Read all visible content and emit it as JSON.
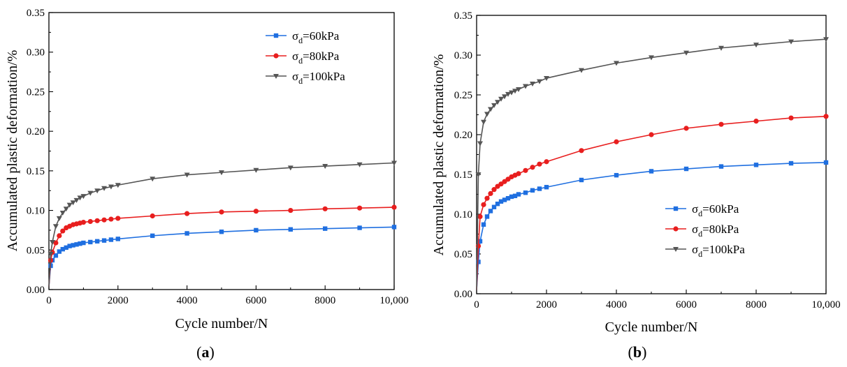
{
  "chart_data": [
    {
      "type": "line",
      "panel_label": "a",
      "xlabel": "Cycle number/N",
      "ylabel": "Accumulated plastic deformation/%",
      "xlim": [
        0,
        10000
      ],
      "ylim": [
        0,
        0.35
      ],
      "x_ticks": [
        "0",
        "2000",
        "4000",
        "6000",
        "8000",
        "10,000"
      ],
      "y_ticks": [
        "0.00",
        "0.05",
        "0.10",
        "0.15",
        "0.20",
        "0.25",
        "0.30",
        "0.35"
      ],
      "legend_position": "top-right",
      "grid": false,
      "x": [
        1,
        50,
        100,
        200,
        300,
        400,
        500,
        600,
        700,
        800,
        900,
        1000,
        1200,
        1400,
        1600,
        1800,
        2000,
        3000,
        4000,
        5000,
        6000,
        7000,
        8000,
        9000,
        10000
      ],
      "series": [
        {
          "name_main": "σ",
          "name_sub": "d",
          "name_rest": "=60kPa",
          "color": "#1f6fe0",
          "marker": "square",
          "values": [
            0.004,
            0.03,
            0.037,
            0.043,
            0.048,
            0.051,
            0.053,
            0.055,
            0.056,
            0.057,
            0.058,
            0.059,
            0.06,
            0.061,
            0.062,
            0.063,
            0.064,
            0.068,
            0.071,
            0.073,
            0.075,
            0.076,
            0.077,
            0.078,
            0.079
          ]
        },
        {
          "name_main": "σ",
          "name_sub": "d",
          "name_rest": "=80kPa",
          "color": "#e81e1e",
          "marker": "circle",
          "values": [
            0.004,
            0.037,
            0.047,
            0.059,
            0.068,
            0.074,
            0.078,
            0.08,
            0.082,
            0.083,
            0.084,
            0.085,
            0.086,
            0.087,
            0.088,
            0.089,
            0.09,
            0.093,
            0.096,
            0.098,
            0.099,
            0.1,
            0.102,
            0.103,
            0.104
          ]
        },
        {
          "name_main": "σ",
          "name_sub": "d",
          "name_rest": "=100kPa",
          "color": "#555555",
          "marker": "triangle-down",
          "values": [
            0.004,
            0.045,
            0.06,
            0.08,
            0.09,
            0.097,
            0.102,
            0.107,
            0.11,
            0.113,
            0.116,
            0.118,
            0.122,
            0.125,
            0.128,
            0.13,
            0.132,
            0.14,
            0.145,
            0.148,
            0.151,
            0.154,
            0.156,
            0.158,
            0.16
          ]
        }
      ]
    },
    {
      "type": "line",
      "panel_label": "b",
      "xlabel": "Cycle number/N",
      "ylabel": "Accumulated plastic deformation/%",
      "xlim": [
        0,
        10000
      ],
      "ylim": [
        0,
        0.35
      ],
      "x_ticks": [
        "0",
        "2000",
        "4000",
        "6000",
        "8000",
        "10,000"
      ],
      "y_ticks": [
        "0.00",
        "0.05",
        "0.10",
        "0.15",
        "0.20",
        "0.25",
        "0.30",
        "0.35"
      ],
      "legend_position": "bottom-center",
      "grid": false,
      "x": [
        1,
        50,
        100,
        200,
        300,
        400,
        500,
        600,
        700,
        800,
        900,
        1000,
        1100,
        1200,
        1400,
        1600,
        1800,
        2000,
        3000,
        4000,
        5000,
        6000,
        7000,
        8000,
        9000,
        10000
      ],
      "series": [
        {
          "name_main": "σ",
          "name_sub": "d",
          "name_rest": "=60kPa",
          "color": "#1f6fe0",
          "marker": "square",
          "values": [
            0.005,
            0.04,
            0.066,
            0.087,
            0.097,
            0.104,
            0.109,
            0.113,
            0.116,
            0.118,
            0.12,
            0.122,
            0.123,
            0.125,
            0.127,
            0.13,
            0.132,
            0.134,
            0.143,
            0.149,
            0.154,
            0.157,
            0.16,
            0.162,
            0.164,
            0.165
          ]
        },
        {
          "name_main": "σ",
          "name_sub": "d",
          "name_rest": "=80kPa",
          "color": "#e81e1e",
          "marker": "circle",
          "values": [
            0.005,
            0.06,
            0.097,
            0.112,
            0.12,
            0.126,
            0.131,
            0.135,
            0.138,
            0.141,
            0.144,
            0.147,
            0.149,
            0.151,
            0.155,
            0.159,
            0.163,
            0.166,
            0.18,
            0.191,
            0.2,
            0.208,
            0.213,
            0.217,
            0.221,
            0.223
          ]
        },
        {
          "name_main": "σ",
          "name_sub": "d",
          "name_rest": "=100kPa",
          "color": "#555555",
          "marker": "triangle-down",
          "values": [
            0.005,
            0.15,
            0.189,
            0.216,
            0.226,
            0.232,
            0.237,
            0.241,
            0.245,
            0.248,
            0.251,
            0.253,
            0.255,
            0.257,
            0.261,
            0.264,
            0.267,
            0.271,
            0.281,
            0.29,
            0.297,
            0.303,
            0.309,
            0.313,
            0.317,
            0.32
          ]
        }
      ]
    }
  ]
}
